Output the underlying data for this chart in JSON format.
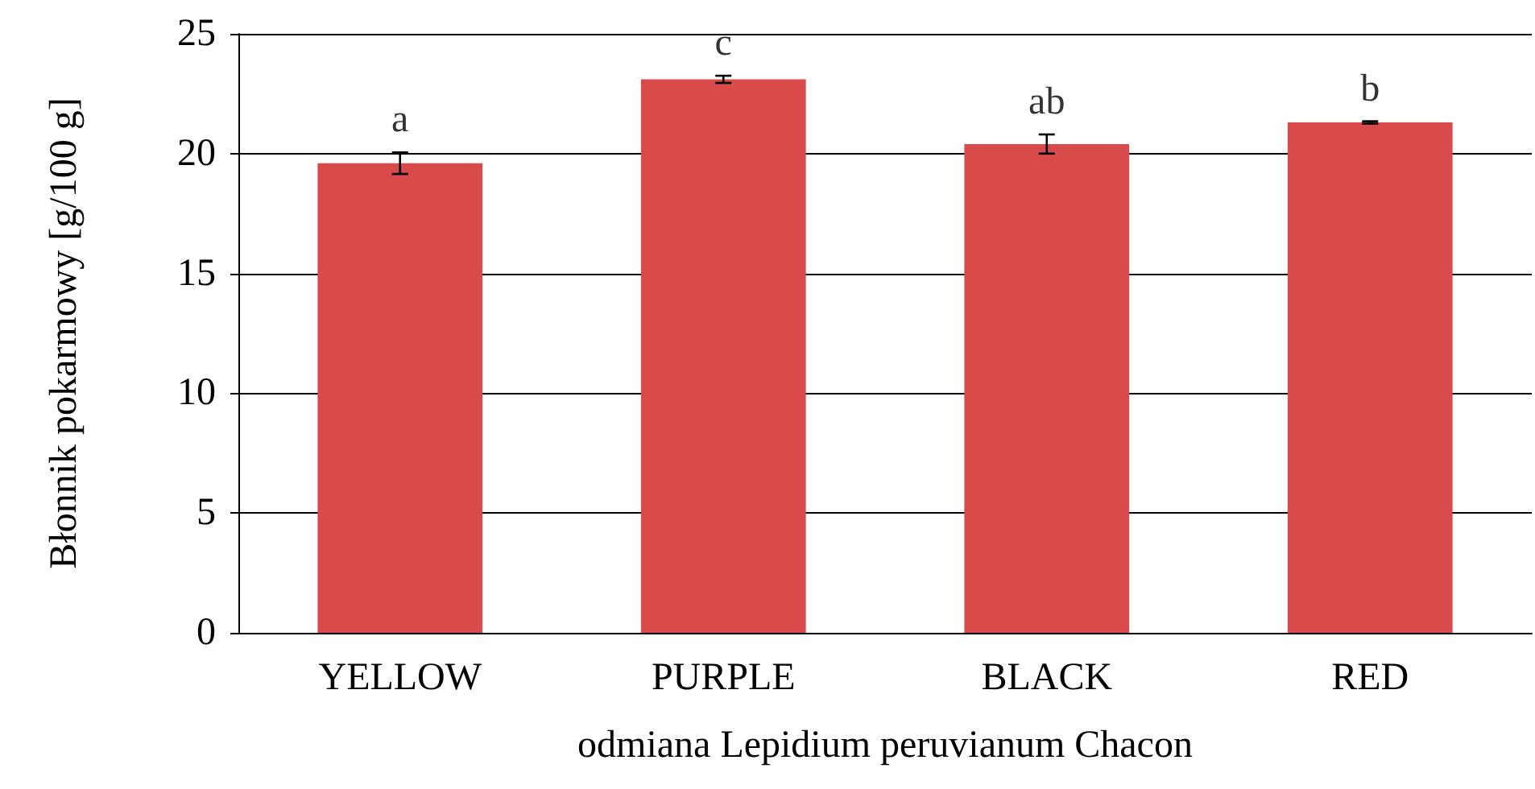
{
  "chart_data": {
    "type": "bar",
    "xlabel": "odmiana Lepidium peruvianum Chacon",
    "ylabel": "Błonnik pokarmowy [g/100 g]",
    "categories": [
      "YELLOW",
      "PURPLE",
      "BLACK",
      "RED"
    ],
    "values": [
      19.6,
      23.1,
      20.4,
      21.3
    ],
    "errors": [
      0.45,
      0.15,
      0.4,
      0.05
    ],
    "color": "#d94a4a",
    "ylim": [
      0,
      25
    ],
    "yticks": [
      0,
      5,
      10,
      15,
      20,
      25
    ],
    "grid": "y",
    "annotations": [
      "a",
      "c",
      "ab",
      "b"
    ]
  }
}
